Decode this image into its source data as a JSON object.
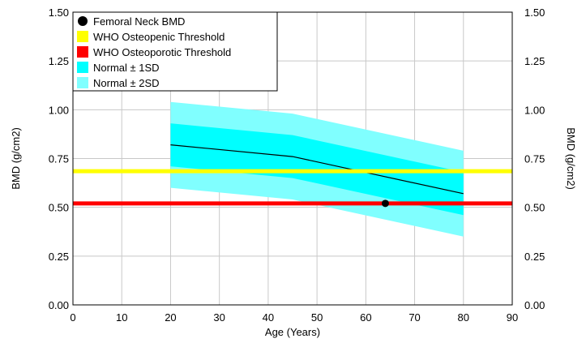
{
  "chart_data": {
    "type": "line",
    "title": "",
    "xlabel": "Age (Years)",
    "ylabel_left": "BMD (g/cm2)",
    "ylabel_right": "BMD (g/cm2)",
    "xlim": [
      0,
      90
    ],
    "ylim": [
      0,
      1.5
    ],
    "x_ticks": [
      "0",
      "10",
      "20",
      "30",
      "40",
      "50",
      "60",
      "70",
      "80",
      "90"
    ],
    "y_ticks": [
      "0.00",
      "0.25",
      "0.50",
      "0.75",
      "1.00",
      "1.25",
      "1.50"
    ],
    "grid": true,
    "legend_position": "top-left",
    "legend": [
      {
        "label": "Femoral Neck BMD",
        "color": "#000000",
        "marker": "circle"
      },
      {
        "label": "WHO Osteopenic Threshold",
        "color": "#ffff00",
        "marker": "square"
      },
      {
        "label": "WHO Osteoporotic Threshold",
        "color": "#ff0000",
        "marker": "square"
      },
      {
        "label": "Normal ± 1SD",
        "color": "#00ffff",
        "marker": "square"
      },
      {
        "label": "Normal ± 2SD",
        "color": "#80ffff",
        "marker": "square"
      }
    ],
    "reference_mean": {
      "x": [
        20,
        45,
        80
      ],
      "y": [
        0.82,
        0.76,
        0.57
      ]
    },
    "band_1sd": {
      "x": [
        20,
        45,
        80
      ],
      "upper": [
        0.93,
        0.87,
        0.68
      ],
      "lower": [
        0.71,
        0.65,
        0.46
      ]
    },
    "band_2sd": {
      "x": [
        20,
        45,
        80
      ],
      "upper": [
        1.04,
        0.98,
        0.79
      ],
      "lower": [
        0.6,
        0.54,
        0.35
      ]
    },
    "thresholds": {
      "osteopenic": 0.685,
      "osteoporotic": 0.52
    },
    "patient_point": {
      "x": 64,
      "y": 0.52
    },
    "colors": {
      "band_1sd": "#00ffff",
      "band_2sd": "#80ffff",
      "osteopenic": "#ffff00",
      "osteoporotic": "#ff0000",
      "mean_line": "#000000",
      "grid": "#c8c8c8"
    }
  }
}
